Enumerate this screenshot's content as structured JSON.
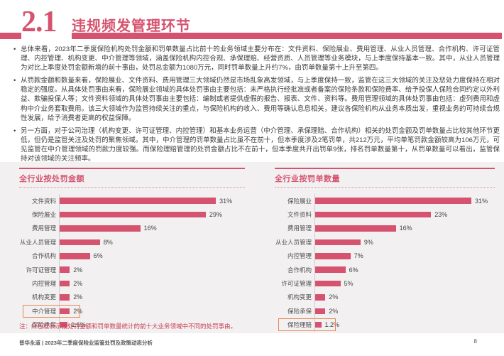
{
  "header": {
    "section_number": "2.1",
    "title": "违规频发管理环节"
  },
  "bullets": [
    "总体来看，2023年二季度保险机构处罚金额和罚单数量占比前十的业务领域主要分布在：文件资料、保险展业、费用管理、从业人员管理、合作机构、许可证管理、内控管理、机构变更、中介管理等领域，涵盖保险机构内控合规、承保理赔、经营资质、人员管理等业务模块，与上季度保持基本一致。其中，从业人员管理为对比上季度处罚金额新增的前十事由，处罚总金额为1080万元，同时罚单数量上升约7%，由罚单数量第十上升至第四。",
    "从罚款金额和数量来看，保险展业、文件资料、费用管理三大领域仍然是市场乱象高发领域，与上季度保持一致，监管在这三大领域的关注及惩处力度保持在相对稳定的强度。从具体处罚事由来看，保险展业领域的具体处罚事由主要包括：未严格执行经批准或者备案的保险条款和保险费率、给予投保人保险合同约定以外利益、欺骗投保人等；文件资料领域的具体处罚事由主要包括：编制或者提供虚假的报告、报表、文件、资料等。费用管理领域的具体处罚事由包括：虚列费用和虚构中介业务套取费用。该三大领域作为监管持续关注的重点，与保险机构的收入、费用等确认息息相关，建议各保险机构从业务本质出发，重视业务的可持续合规性发展，给予消费者更高的权益保障。",
    "另一方面，对于公司治理（机构变更、许可证管理、内控管理）和基本业务运营（中介管理、承保理赔、合作机构）相关的处罚金额及罚单数量占比较其他环节更低，但仍是监管关注及处罚的聚焦领域。其中，中介管理的罚单数量占比虽不在前十，但本季度涉及2笔罚单，共212万元，平均单笔罚款金额较高为106万元，可见监管在中介管理领域的罚款力度较强。而保险理赔管理的处罚金额占比不在前十，但本季度共开出罚单9张，排名罚单数量第十，从罚单数量可以看出，监管保持对该领域的关注频率。"
  ],
  "chart_data": [
    {
      "type": "bar",
      "orientation": "horizontal",
      "title": "全行业按处罚金额",
      "categories": [
        "文件资料",
        "保险展业",
        "费用管理",
        "从业人员管理",
        "合作机构",
        "许可证管理",
        "内控管理",
        "机构变更",
        "中介管理",
        "保险承保"
      ],
      "values": [
        31,
        29,
        16,
        8,
        6,
        2,
        2,
        2,
        2,
        1.6
      ],
      "value_labels": [
        "31%",
        "29%",
        "16%",
        "8%",
        "6%",
        "2%",
        "2%",
        "2%",
        "2%",
        "1.6%"
      ],
      "highlight_category": "中介管理",
      "xlim": [
        0,
        33
      ],
      "grid": false,
      "legend": false,
      "unit": "percent"
    },
    {
      "type": "bar",
      "orientation": "horizontal",
      "title": "全行业按罚单数量",
      "categories": [
        "保险展业",
        "文件资料",
        "费用管理",
        "从业人员管理",
        "内控管理",
        "合作机构",
        "许可证管理",
        "机构变更",
        "保险承保",
        "保险理赔"
      ],
      "values": [
        31,
        23,
        16,
        9,
        7,
        6,
        5,
        2,
        2,
        1.2
      ],
      "value_labels": [
        "31%",
        "23%",
        "16%",
        "9%",
        "7%",
        "6%",
        "5%",
        "2%",
        "2%",
        "1.2%"
      ],
      "highlight_category": "保险理赔",
      "xlim": [
        0,
        33
      ],
      "grid": false,
      "legend": false,
      "unit": "percent"
    }
  ],
  "chart_note": "注：红色框表示按处罚金额和罚单数量统计的前十大业务领域中不同的处罚事由。",
  "footer": {
    "left": "普华永道 | 2023年二季度保险业监管处罚及政策动态分析",
    "page_number": "8"
  },
  "colors": {
    "accent": "#D6536F",
    "highlight_box": "#E9854F",
    "chart_bg": "#F2F0F1",
    "note_red": "#CB4156"
  }
}
